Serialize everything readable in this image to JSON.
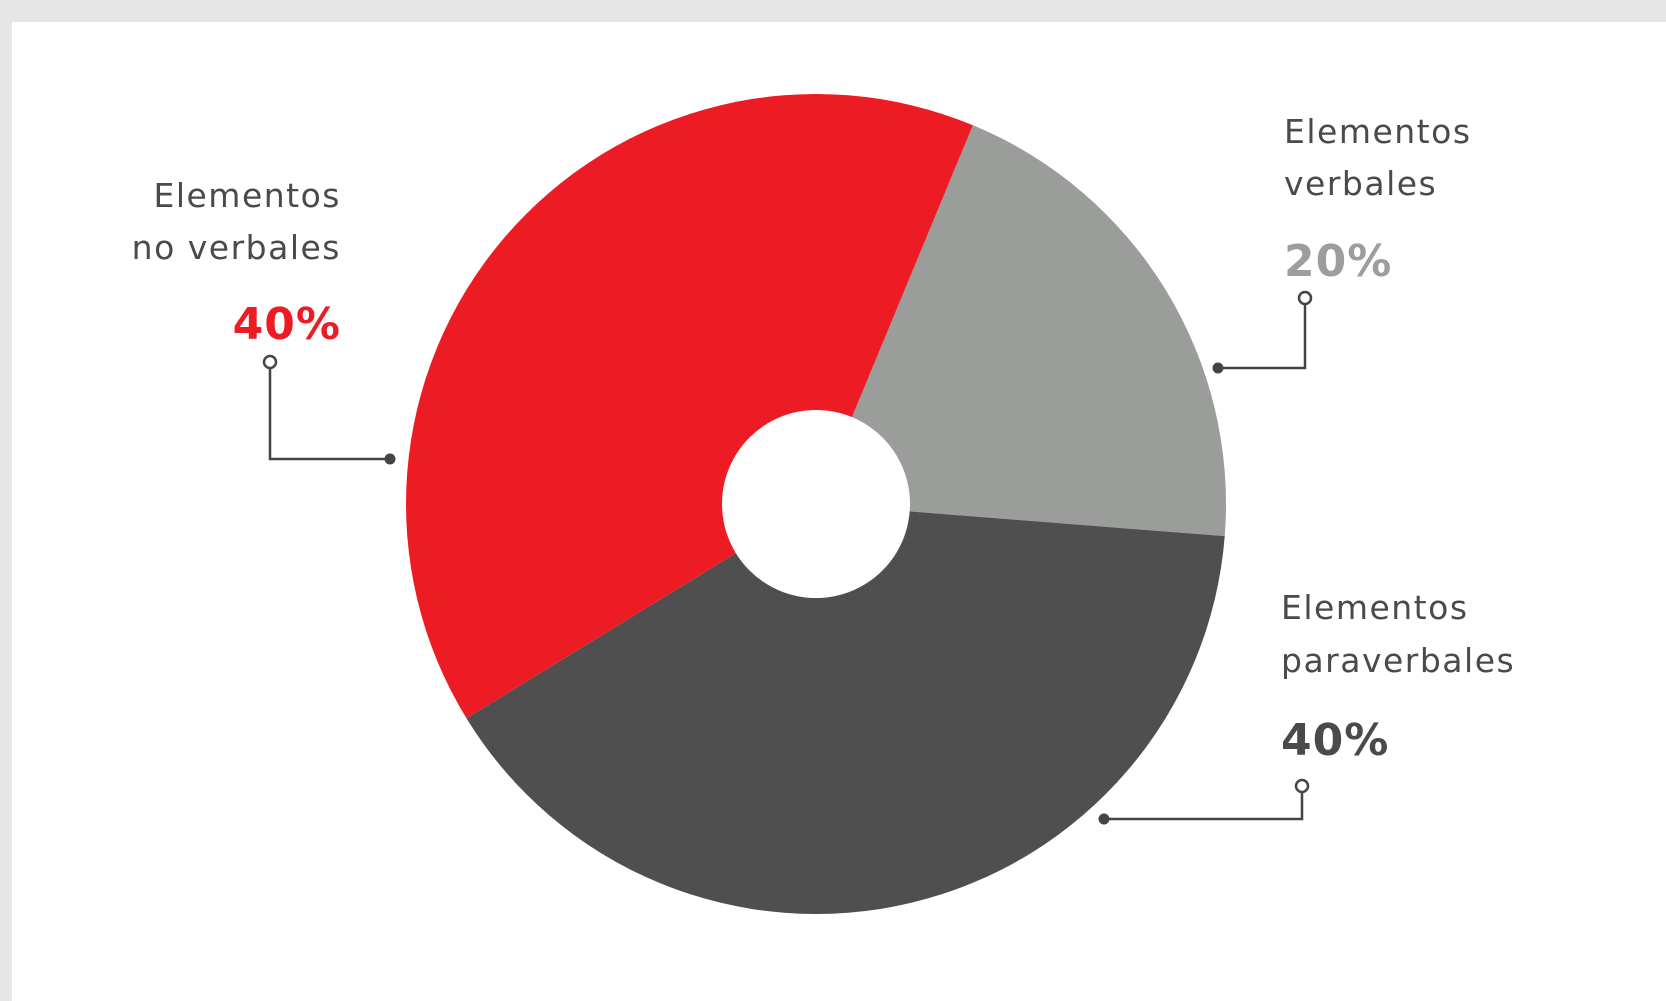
{
  "chart_data": {
    "type": "pie",
    "title": "",
    "slices": [
      {
        "label_lines": [
          "Elementos",
          "no verbales"
        ],
        "value": 40,
        "percent_label": "40%",
        "color": "#ed1c24",
        "label_color": "#ed1c24"
      },
      {
        "label_lines": [
          "Elementos",
          "verbales"
        ],
        "value": 20,
        "percent_label": "20%",
        "color": "#9a9d9a",
        "label_color": "#9d9d9d"
      },
      {
        "label_lines": [
          "Elementos",
          "paraverbales"
        ],
        "value": 40,
        "percent_label": "40%",
        "color": "#4f4f4f",
        "label_color": "#4a4a4a"
      }
    ],
    "donut_hole": true,
    "legend": "none"
  }
}
